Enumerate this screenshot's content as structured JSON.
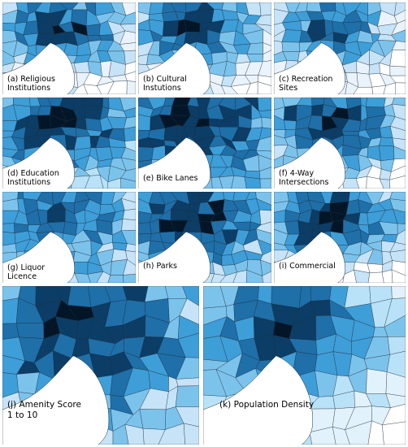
{
  "panels": [
    {
      "id": "a",
      "label": "(a) Religious Institutions",
      "base": "#ffffff",
      "palette": [
        "#ffffff",
        "#eaf3fb",
        "#c6e3f7",
        "#7cc3ec",
        "#3e9ed8",
        "#1f6fa9",
        "#0b3d66",
        "#031627"
      ]
    },
    {
      "id": "b",
      "label": "(b) Cultural Instutions",
      "base": "#ffffff",
      "palette": [
        "#ffffff",
        "#eaf3fb",
        "#c6e3f7",
        "#7cc3ec",
        "#3e9ed8",
        "#1f6fa9",
        "#0b3d66",
        "#031627"
      ]
    },
    {
      "id": "c",
      "label": "(c) Recreation Sites",
      "base": "#ffffff",
      "palette": [
        "#ffffff",
        "#eaf3fb",
        "#c6e3f7",
        "#7cc3ec",
        "#3e9ed8",
        "#1f6fa9",
        "#0b3d66"
      ]
    },
    {
      "id": "d",
      "label": "(d) Education Institutions",
      "base": "#8fd0f2",
      "palette": [
        "#b9e2f8",
        "#7cc3ec",
        "#3e9ed8",
        "#1f6fa9",
        "#0b3d66",
        "#031627"
      ]
    },
    {
      "id": "e",
      "label": "(e) Bike Lanes",
      "base": "#3e9ed8",
      "palette": [
        "#7cc3ec",
        "#3e9ed8",
        "#1f6fa9",
        "#0b3d66",
        "#031627"
      ]
    },
    {
      "id": "f",
      "label": "(f) 4-Way Intersections",
      "base": "#b9e2f8",
      "palette": [
        "#ffffff",
        "#c6e3f7",
        "#7cc3ec",
        "#3e9ed8",
        "#1f6fa9",
        "#0b3d66",
        "#031627"
      ]
    },
    {
      "id": "g",
      "label": "(g) Liquor Licence",
      "base": "#7cc3ec",
      "palette": [
        "#c6e3f7",
        "#7cc3ec",
        "#3e9ed8",
        "#1f6fa9",
        "#0b3d66"
      ]
    },
    {
      "id": "h",
      "label": "(h) Parks",
      "base": "#7cc3ec",
      "palette": [
        "#c6e3f7",
        "#7cc3ec",
        "#3e9ed8",
        "#1f6fa9",
        "#0b3d66",
        "#031627"
      ]
    },
    {
      "id": "i",
      "label": "(i) Commercial",
      "base": "#b9e2f8",
      "palette": [
        "#ffffff",
        "#c6e3f7",
        "#7cc3ec",
        "#3e9ed8",
        "#1f6fa9",
        "#0b3d66",
        "#031627"
      ]
    },
    {
      "id": "j",
      "label": "(j) Amenity Score 1 to 10",
      "base": "#5fb3e6",
      "palette": [
        "#c6e3f7",
        "#7cc3ec",
        "#3e9ed8",
        "#1f6fa9",
        "#0b3d66",
        "#031627"
      ]
    },
    {
      "id": "k",
      "label": "(k) Population Density",
      "base": "#d4ecfa",
      "palette": [
        "#ffffff",
        "#e2f2fc",
        "#b9e2f8",
        "#7cc3ec",
        "#3e9ed8",
        "#1f6fa9",
        "#0b3d66",
        "#031627"
      ]
    }
  ],
  "colors": {
    "bay": "#ffffff",
    "outline": "#1b2a38"
  }
}
